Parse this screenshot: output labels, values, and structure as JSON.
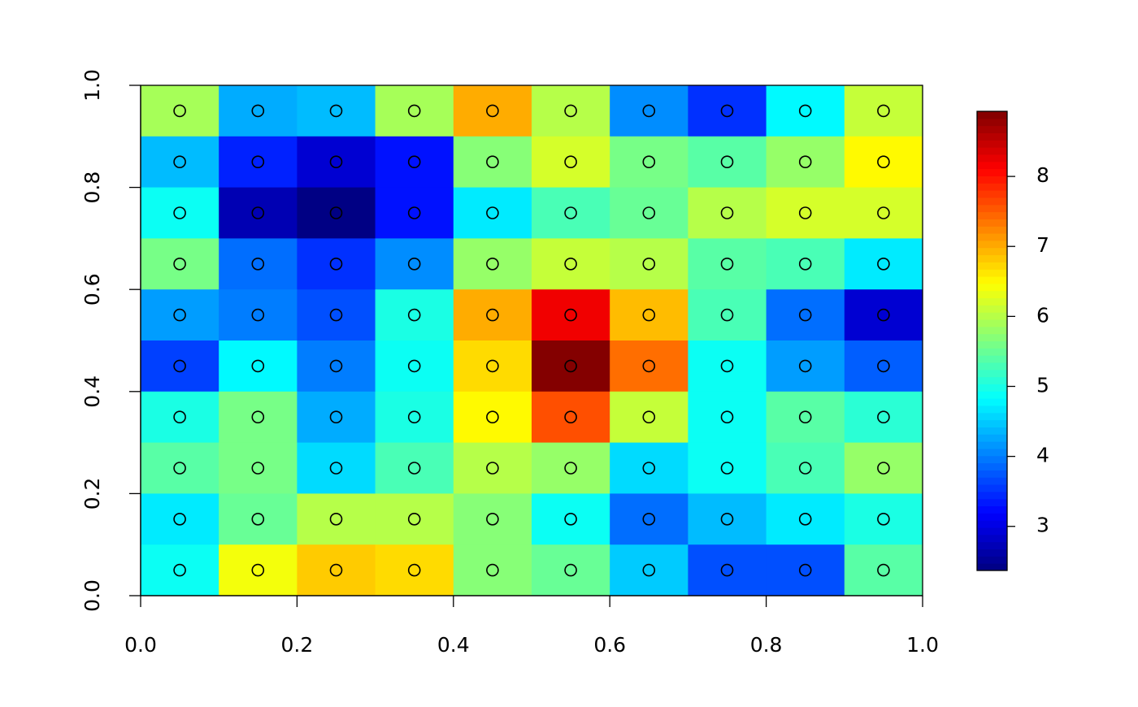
{
  "chart_data": {
    "type": "heatmap",
    "x": [
      0.05,
      0.15,
      0.25,
      0.35,
      0.45,
      0.55,
      0.65,
      0.75,
      0.85,
      0.95
    ],
    "y": [
      0.95,
      0.85,
      0.75,
      0.65,
      0.55,
      0.45,
      0.35,
      0.25,
      0.15,
      0.05
    ],
    "values": [
      [
        5.9,
        4.3,
        4.4,
        5.9,
        7.0,
        6.0,
        4.1,
        3.5,
        4.8,
        6.1
      ],
      [
        4.4,
        3.4,
        2.9,
        3.3,
        5.7,
        6.2,
        5.6,
        5.4,
        5.8,
        6.5
      ],
      [
        4.9,
        2.7,
        2.4,
        3.3,
        4.7,
        5.3,
        5.5,
        6.0,
        6.2,
        6.2
      ],
      [
        5.6,
        3.9,
        3.5,
        4.1,
        5.8,
        6.1,
        6.0,
        5.4,
        5.3,
        4.7
      ],
      [
        4.2,
        4.0,
        3.7,
        5.0,
        7.0,
        8.2,
        6.9,
        5.3,
        3.9,
        2.9
      ],
      [
        3.6,
        4.8,
        4.0,
        4.9,
        6.7,
        8.9,
        7.4,
        4.9,
        4.2,
        3.8
      ],
      [
        5.0,
        5.6,
        4.3,
        5.0,
        6.5,
        7.6,
        6.1,
        4.9,
        5.4,
        5.1
      ],
      [
        5.4,
        5.6,
        4.6,
        5.3,
        6.0,
        5.8,
        4.6,
        4.9,
        5.3,
        5.8
      ],
      [
        4.7,
        5.5,
        6.0,
        6.0,
        5.7,
        4.9,
        3.9,
        4.4,
        4.7,
        5.0
      ],
      [
        4.9,
        6.4,
        6.8,
        6.7,
        5.7,
        5.5,
        4.5,
        3.7,
        3.7,
        5.4
      ]
    ],
    "xlim": [
      0,
      1
    ],
    "ylim": [
      0,
      1
    ],
    "xticks": [
      {
        "value": 0,
        "label": "0.0"
      },
      0.2,
      0.4,
      0.6,
      0.8,
      {
        "value": 1,
        "label": "1.0"
      }
    ],
    "yticks": [
      {
        "value": 0,
        "label": "0.0"
      },
      0.2,
      0.4,
      0.6,
      0.8,
      {
        "value": 1,
        "label": "1.0"
      }
    ],
    "zlim": [
      2.37,
      8.93
    ],
    "zticks": [
      3,
      4,
      5,
      6,
      7,
      8
    ],
    "colormap": [
      "#00007F",
      "#0000FF",
      "#007FFF",
      "#00FFFF",
      "#7FFF7F",
      "#FFFF00",
      "#FF7F00",
      "#FF0000",
      "#7F0000"
    ]
  }
}
